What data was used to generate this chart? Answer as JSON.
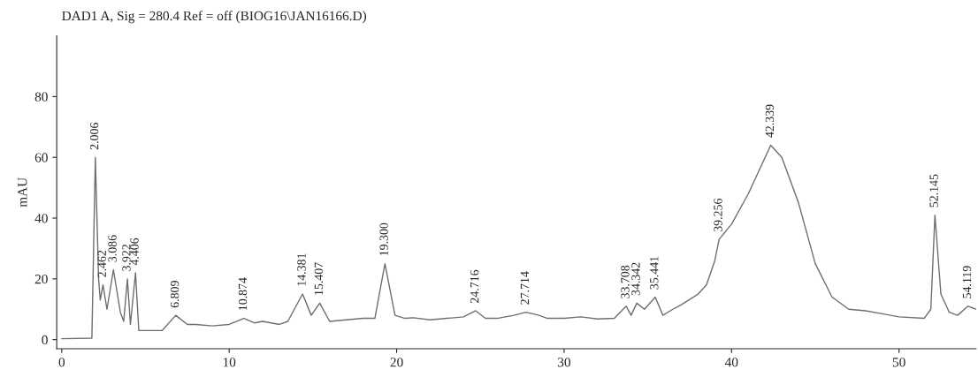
{
  "chart_data": {
    "type": "line",
    "title": "DAD1 A, Sig = 280.4 Ref = off (BIOG16\\JAN16166.D)",
    "ylabel": "mAU",
    "xlim": [
      -0.3,
      54.6
    ],
    "ylim": [
      -3,
      100
    ],
    "xticks": [
      0,
      10,
      20,
      30,
      40,
      50
    ],
    "yticks": [
      0,
      20,
      40,
      60,
      80
    ],
    "grid": false,
    "marker": "none",
    "line_style": "solid",
    "series": [
      {
        "color": "#6e6e6e",
        "x": [
          0,
          1.8,
          2.006,
          2.2,
          2.3,
          2.462,
          2.7,
          3.086,
          3.5,
          3.7,
          3.922,
          4.1,
          4.406,
          4.6,
          5,
          6,
          6.809,
          7.5,
          8,
          9,
          10,
          10.874,
          11.5,
          12,
          13,
          13.5,
          14.381,
          14.9,
          15.407,
          16,
          17,
          18,
          18.7,
          19.3,
          19.9,
          20.5,
          21,
          22,
          23,
          24,
          24.716,
          25.3,
          26,
          27,
          27.714,
          28.5,
          29,
          30,
          31,
          32,
          33,
          33.708,
          34.0,
          34.342,
          34.8,
          35.441,
          35.9,
          36.5,
          37,
          38,
          38.5,
          39,
          39.256,
          40,
          41,
          42.339,
          43,
          44,
          45,
          46,
          47,
          48,
          49,
          50,
          51.5,
          51.9,
          52.145,
          52.5,
          53,
          53.5,
          54.119,
          54.6
        ],
        "values": [
          0.3,
          0.5,
          60,
          20,
          13,
          18,
          10,
          23,
          9,
          6,
          20,
          5,
          22,
          3,
          3,
          3,
          8,
          5,
          5,
          4.5,
          5,
          7,
          5.5,
          6,
          5,
          6,
          15,
          8,
          12,
          6,
          6.5,
          7,
          7,
          25,
          8,
          7,
          7.2,
          6.5,
          7,
          7.5,
          9.5,
          7,
          7,
          8,
          9,
          8,
          7,
          7,
          7.5,
          6.8,
          7,
          11,
          8,
          12,
          10,
          14,
          8,
          10,
          11.5,
          15,
          18,
          26,
          33,
          38,
          48,
          64,
          60,
          45,
          25,
          14,
          10,
          9.5,
          8.5,
          7.5,
          7,
          10,
          41,
          15,
          9,
          8,
          11,
          10
        ]
      }
    ],
    "annotations": [
      {
        "text": "2.006",
        "x": 2.006,
        "y": 60
      },
      {
        "text": "2.462",
        "x": 2.462,
        "y": 18
      },
      {
        "text": "3.086",
        "x": 3.086,
        "y": 23
      },
      {
        "text": "3.922",
        "x": 3.922,
        "y": 20
      },
      {
        "text": "4.406",
        "x": 4.406,
        "y": 22
      },
      {
        "text": "6.809",
        "x": 6.809,
        "y": 8
      },
      {
        "text": "10.874",
        "x": 10.874,
        "y": 7
      },
      {
        "text": "14.381",
        "x": 14.381,
        "y": 15
      },
      {
        "text": "15.407",
        "x": 15.407,
        "y": 12
      },
      {
        "text": "19.300",
        "x": 19.3,
        "y": 25
      },
      {
        "text": "24.716",
        "x": 24.716,
        "y": 9.5
      },
      {
        "text": "27.714",
        "x": 27.714,
        "y": 9
      },
      {
        "text": "33.708",
        "x": 33.708,
        "y": 11
      },
      {
        "text": "34.342",
        "x": 34.342,
        "y": 12
      },
      {
        "text": "35.441",
        "x": 35.441,
        "y": 14
      },
      {
        "text": "39.256",
        "x": 39.256,
        "y": 33
      },
      {
        "text": "42.339",
        "x": 42.339,
        "y": 64
      },
      {
        "text": "52.145",
        "x": 52.145,
        "y": 41
      },
      {
        "text": "54.119",
        "x": 54.119,
        "y": 11
      }
    ]
  }
}
